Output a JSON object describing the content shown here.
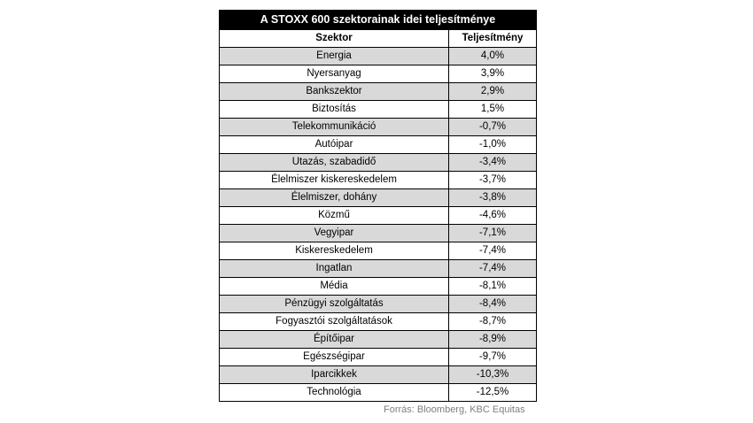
{
  "chart_data": {
    "type": "table",
    "title": "A STOXX 600 szektorainak idei teljesítménye",
    "columns": [
      "Szektor",
      "Teljesítmény"
    ],
    "rows": [
      {
        "sector": "Energia",
        "value": "4,0%"
      },
      {
        "sector": "Nyersanyag",
        "value": "3,9%"
      },
      {
        "sector": "Bankszektor",
        "value": "2,9%"
      },
      {
        "sector": "Biztosítás",
        "value": "1,5%"
      },
      {
        "sector": "Telekommunikáció",
        "value": "-0,7%"
      },
      {
        "sector": "Autóipar",
        "value": "-1,0%"
      },
      {
        "sector": "Utazás, szabadidő",
        "value": "-3,4%"
      },
      {
        "sector": "Élelmiszer kiskereskedelem",
        "value": "-3,7%"
      },
      {
        "sector": "Élelmiszer, dohány",
        "value": "-3,8%"
      },
      {
        "sector": "Közmű",
        "value": "-4,6%"
      },
      {
        "sector": "Vegyipar",
        "value": "-7,1%"
      },
      {
        "sector": "Kiskereskedelem",
        "value": "-7,4%"
      },
      {
        "sector": "Ingatlan",
        "value": "-7,4%"
      },
      {
        "sector": "Média",
        "value": "-8,1%"
      },
      {
        "sector": "Pénzügyi szolgáltatás",
        "value": "-8,4%"
      },
      {
        "sector": "Fogyasztói szolgáltatások",
        "value": "-8,7%"
      },
      {
        "sector": "Építőipar",
        "value": "-8,9%"
      },
      {
        "sector": "Egészségipar",
        "value": "-9,7%"
      },
      {
        "sector": "Iparcikkek",
        "value": "-10,3%"
      },
      {
        "sector": "Technológia",
        "value": "-12,5%"
      }
    ],
    "source": "Forrás: Bloomberg, KBC Equitas"
  },
  "colors": {
    "header_bg": "#000000",
    "header_text": "#ffffff",
    "shaded_row": "#d9d9d9",
    "plain_row": "#ffffff",
    "source_text": "#7f7f7f"
  }
}
